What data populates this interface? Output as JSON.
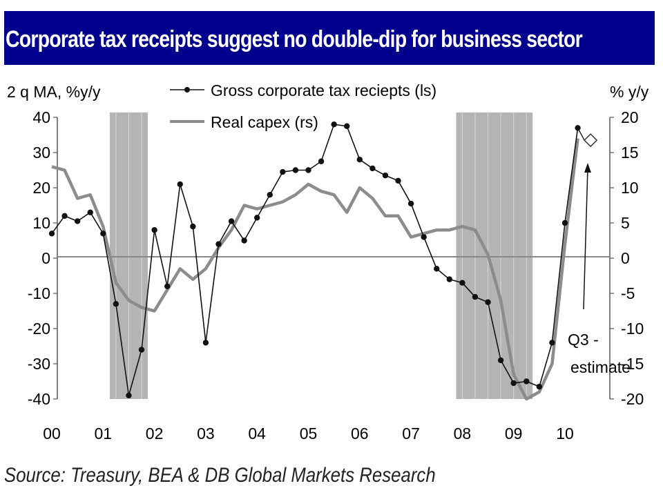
{
  "header": {
    "title": "Corporate tax receipts suggest no double-dip for business sector"
  },
  "footer": {
    "source": "Source: Treasury, BEA & DB Global Markets Research"
  },
  "colors": {
    "title_bg": "#00008c",
    "title_text": "#ffffff",
    "tax_series": "#111111",
    "capex_series": "#8c8c8c",
    "recession": "#b4b4b4",
    "zero_line": "#888888"
  },
  "chart_data": {
    "type": "line",
    "title": "Corporate tax receipts suggest no double-dip for business sector",
    "left_axis": {
      "label": "2 q MA, %y/y",
      "range": [
        -40,
        40
      ],
      "ticks": [
        40,
        30,
        20,
        10,
        0,
        -10,
        -20,
        -30,
        -40
      ]
    },
    "right_axis": {
      "label": "% y/y",
      "range": [
        -20,
        20
      ],
      "ticks": [
        20,
        15,
        10,
        5,
        0,
        -5,
        -10,
        -15,
        -20
      ]
    },
    "x_axis": {
      "range": [
        0,
        11.0
      ],
      "ticks": [
        0,
        1,
        2,
        3,
        4,
        5,
        6,
        7,
        8,
        9,
        10
      ],
      "tick_labels": [
        "00",
        "01",
        "02",
        "03",
        "04",
        "05",
        "06",
        "07",
        "08",
        "09",
        "10"
      ]
    },
    "recessions": [
      [
        1.13,
        1.87
      ],
      [
        7.88,
        9.37
      ]
    ],
    "series": [
      {
        "name": "Gross corporate tax reciepts (ls)",
        "axis": "left",
        "style": "line-markers",
        "x": [
          0,
          0.25,
          0.5,
          0.75,
          1.0,
          1.25,
          1.5,
          1.75,
          2.0,
          2.25,
          2.5,
          2.75,
          3.0,
          3.25,
          3.5,
          3.75,
          4.0,
          4.25,
          4.5,
          4.75,
          5.0,
          5.25,
          5.5,
          5.75,
          6.0,
          6.25,
          6.5,
          6.75,
          7.0,
          7.25,
          7.5,
          7.75,
          8.0,
          8.25,
          8.5,
          8.75,
          9.0,
          9.25,
          9.5,
          9.75,
          10.0,
          10.25
        ],
        "values": [
          7,
          12,
          10.5,
          13,
          7,
          -13,
          -39,
          -26,
          8,
          -8,
          21,
          9,
          -24,
          4,
          10.5,
          5,
          11.5,
          18,
          24.5,
          25,
          25,
          27.5,
          38,
          37.5,
          28,
          25.5,
          23.5,
          22,
          15.5,
          6,
          -3,
          -6,
          -7,
          -11,
          -12.5,
          -29,
          -35.5,
          -35,
          -36.5,
          -24,
          10,
          37
        ]
      },
      {
        "name": "Real capex (rs)",
        "axis": "right",
        "style": "line",
        "x": [
          0,
          0.25,
          0.5,
          0.75,
          1.0,
          1.25,
          1.5,
          1.75,
          2.0,
          2.25,
          2.5,
          2.75,
          3.0,
          3.25,
          3.5,
          3.75,
          4.0,
          4.25,
          4.5,
          4.75,
          5.0,
          5.25,
          5.5,
          5.75,
          6.0,
          6.25,
          6.5,
          6.75,
          7.0,
          7.25,
          7.5,
          7.75,
          8.0,
          8.25,
          8.5,
          8.75,
          9.0,
          9.25,
          9.5,
          9.75,
          10.0,
          10.25
        ],
        "values": [
          13,
          12.5,
          8.5,
          9,
          4.5,
          -3.5,
          -6,
          -7,
          -7.5,
          -4.5,
          -1.5,
          -3,
          -1.5,
          1.5,
          4,
          7.5,
          7,
          7.5,
          8,
          9,
          10.5,
          9.5,
          9,
          6.5,
          10,
          8.5,
          6,
          6,
          3,
          3.5,
          4,
          4,
          4.5,
          4,
          0.5,
          -6,
          -16.5,
          -20,
          -19,
          -15,
          2,
          17
        ]
      },
      {
        "name": "Q3 - estimate",
        "axis": "left",
        "style": "open-diamond",
        "x": [
          10.5
        ],
        "values": [
          33.5
        ]
      }
    ],
    "legend": [
      "Gross corporate tax reciepts (ls)",
      "Real capex (rs)"
    ],
    "annotations": [
      {
        "text_line1": "Q3 -",
        "text_line2": "estimate",
        "arrow_to_x": 10.5,
        "arrow_to_value": 26
      }
    ]
  }
}
